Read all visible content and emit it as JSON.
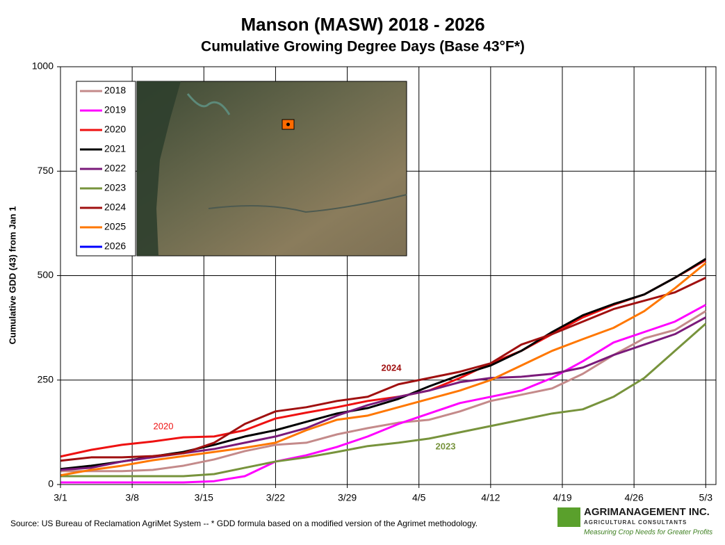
{
  "chart_data": {
    "type": "line",
    "title": "Manson (MASW) 2018 - 2026",
    "subtitle": "Cumulative Growing Degree Days (Base 43°F*)",
    "y_label": "Cumulative GDD (43) from Jan 1",
    "x": [
      0,
      3,
      6,
      9,
      12,
      15,
      18,
      21,
      24,
      27,
      30,
      33,
      36,
      39,
      42,
      45,
      48,
      51,
      54,
      57,
      60,
      63
    ],
    "xlim": [
      0,
      64
    ],
    "xticks": [
      {
        "value": 0,
        "label": "3/1"
      },
      {
        "value": 7,
        "label": "3/8"
      },
      {
        "value": 14,
        "label": "3/15"
      },
      {
        "value": 21,
        "label": "3/22"
      },
      {
        "value": 28,
        "label": "3/29"
      },
      {
        "value": 35,
        "label": "4/5"
      },
      {
        "value": 42,
        "label": "4/12"
      },
      {
        "value": 49,
        "label": "4/19"
      },
      {
        "value": 56,
        "label": "4/26"
      },
      {
        "value": 63,
        "label": "5/3"
      }
    ],
    "ylim": [
      0,
      1000
    ],
    "yticks": [
      0,
      250,
      500,
      750,
      1000
    ],
    "grid": true,
    "series": [
      {
        "name": "2018",
        "color": "#c48a8a",
        "values": [
          32,
          32,
          32,
          35,
          45,
          60,
          80,
          95,
          100,
          120,
          135,
          148,
          155,
          175,
          200,
          215,
          230,
          265,
          310,
          350,
          370,
          415
        ]
      },
      {
        "name": "2019",
        "color": "#ff00ff",
        "values": [
          5,
          5,
          5,
          5,
          5,
          8,
          20,
          55,
          70,
          90,
          115,
          145,
          170,
          195,
          210,
          225,
          255,
          295,
          340,
          365,
          390,
          430
        ]
      },
      {
        "name": "2020",
        "color": "#ee1111",
        "values": [
          67,
          83,
          95,
          103,
          113,
          115,
          130,
          158,
          172,
          185,
          200,
          210,
          225,
          255,
          290,
          320,
          360,
          400,
          430,
          455,
          495,
          537
        ]
      },
      {
        "name": "2021",
        "color": "#000000",
        "values": [
          37,
          45,
          55,
          67,
          78,
          95,
          115,
          130,
          150,
          170,
          183,
          205,
          235,
          262,
          285,
          320,
          365,
          405,
          432,
          455,
          495,
          540
        ]
      },
      {
        "name": "2022",
        "color": "#7a1a7a",
        "values": [
          35,
          40,
          55,
          65,
          75,
          85,
          100,
          115,
          135,
          165,
          190,
          210,
          225,
          245,
          255,
          258,
          265,
          280,
          310,
          335,
          360,
          400
        ]
      },
      {
        "name": "2023",
        "color": "#77933c",
        "values": [
          20,
          20,
          20,
          20,
          20,
          25,
          40,
          55,
          65,
          78,
          92,
          100,
          110,
          125,
          140,
          155,
          170,
          180,
          210,
          255,
          320,
          385
        ]
      },
      {
        "name": "2024",
        "color": "#a01010",
        "values": [
          57,
          65,
          65,
          68,
          75,
          100,
          145,
          175,
          185,
          200,
          210,
          240,
          255,
          270,
          290,
          335,
          360,
          390,
          420,
          440,
          460,
          495
        ]
      },
      {
        "name": "2025",
        "color": "#ff7700",
        "values": [
          22,
          35,
          45,
          58,
          68,
          78,
          88,
          100,
          130,
          155,
          165,
          185,
          205,
          225,
          250,
          285,
          320,
          348,
          375,
          415,
          470,
          530
        ]
      },
      {
        "name": "2026",
        "color": "#0000ff",
        "values": [
          null,
          null,
          null,
          null,
          null,
          null,
          null,
          null,
          null,
          null,
          null,
          null,
          null,
          null,
          null,
          null,
          null,
          null,
          null,
          null,
          null,
          null
        ]
      }
    ],
    "annotations": [
      {
        "text": "2020",
        "color": "#ee1111"
      },
      {
        "text": "2024",
        "color": "#a01010"
      },
      {
        "text": "2023",
        "color": "#77933c"
      }
    ],
    "source": "Source:  US Bureau of Reclamation AgriMet System --  * GDD formula based on a modified version of the Agrimet methodology.",
    "logo": {
      "name": "AGRIMANAGEMENT INC.",
      "tagline": "AGRICULTURAL CONSULTANTS",
      "slogan": "Measuring Crop Needs for Greater Profits"
    }
  }
}
